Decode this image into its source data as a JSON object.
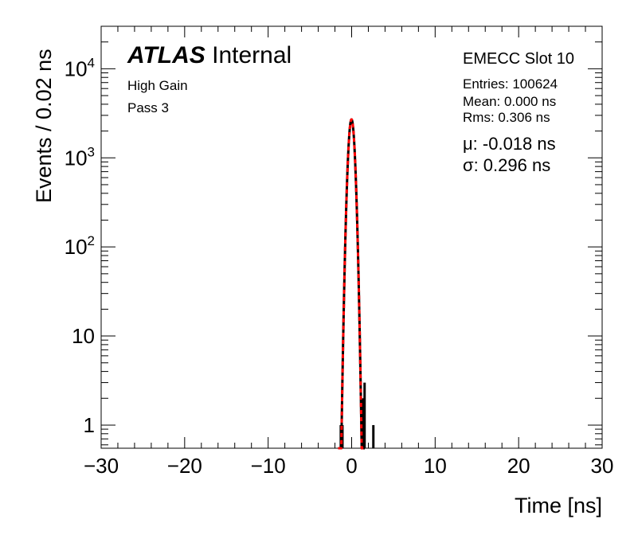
{
  "chart_data": {
    "type": "histogram",
    "title": "EMECC Slot 10",
    "xlabel": "Time [ns]",
    "ylabel": "Events / 0.02 ns",
    "xlim": [
      -30,
      30
    ],
    "ylim_log": [
      0.55,
      30000
    ],
    "yscale": "log",
    "xticks": [
      -30,
      -20,
      -10,
      0,
      10,
      20,
      30
    ],
    "yticks": [
      {
        "value": 1,
        "label": "1"
      },
      {
        "value": 10,
        "label": "10"
      },
      {
        "value": 100,
        "label": "10^2"
      },
      {
        "value": 1000,
        "label": "10^3"
      },
      {
        "value": 10000,
        "label": "10^4"
      }
    ],
    "histogram": {
      "name": "data",
      "color": "#000000",
      "bins": [
        {
          "x": -1.3,
          "y": 1
        },
        {
          "x": -1.1,
          "y": 1
        },
        {
          "x": 1.38,
          "y": 2
        },
        {
          "x": 1.55,
          "y": 3
        },
        {
          "x": 2.6,
          "y": 1
        }
      ]
    },
    "fit": {
      "name": "gaussian fit",
      "color": "#ff0000",
      "amplitude": 2700,
      "mu": -0.018,
      "sigma": 0.296
    }
  },
  "labels": {
    "atlas_bold": "ATLAS",
    "atlas_rest": "Internal",
    "gain": "High Gain",
    "pass": "Pass 3",
    "slot": "EMECC Slot 10",
    "entries": "Entries: 100624",
    "mean": "Mean: 0.000 ns",
    "rms": "Rms: 0.306 ns",
    "mu": "μ: -0.018 ns",
    "sigma": "σ: 0.296 ns",
    "xtitle": "Time [ns]",
    "ytitle": "Events / 0.02 ns"
  }
}
